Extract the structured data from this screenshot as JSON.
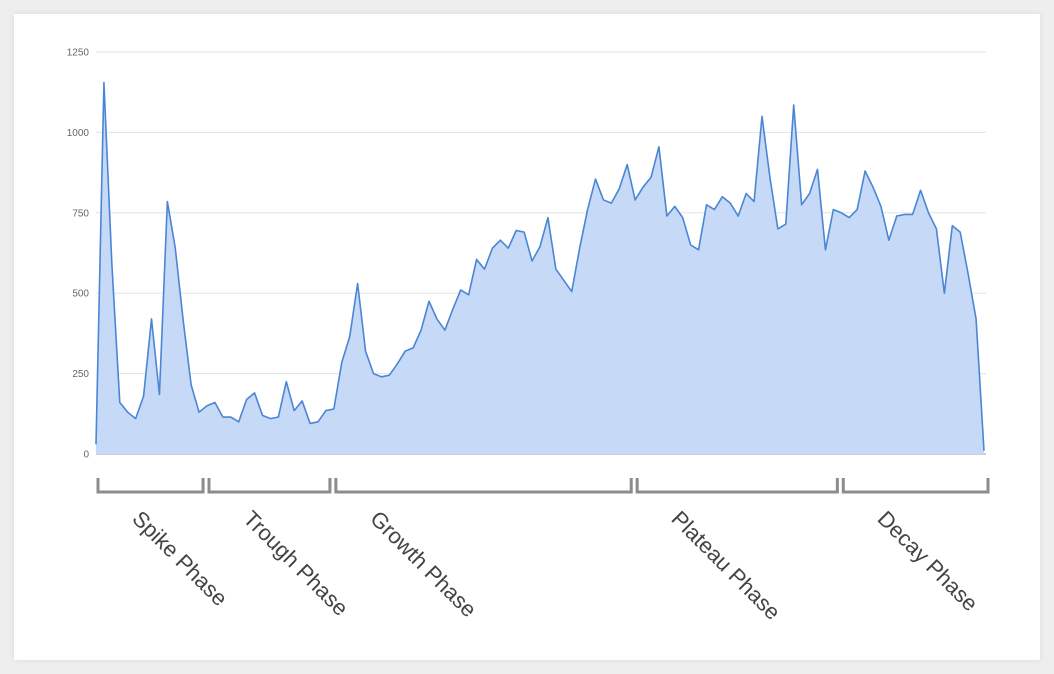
{
  "chart_data": {
    "type": "area",
    "title": "",
    "xlabel": "",
    "ylabel": "",
    "ylim": [
      0,
      1250
    ],
    "yticks": [
      0,
      250,
      500,
      750,
      1000,
      1250
    ],
    "grid": true,
    "colors": {
      "line": "#4a86d4",
      "fill": "#c6d9f7",
      "grid": "#e3e3e3",
      "bracket": "#8c8c8c"
    },
    "series": [
      {
        "values": [
          30,
          1155,
          590,
          160,
          130,
          110,
          180,
          420,
          185,
          785,
          640,
          415,
          215,
          130,
          150,
          160,
          115,
          115,
          100,
          170,
          190,
          120,
          110,
          115,
          225,
          135,
          165,
          95,
          100,
          135,
          140,
          285,
          365,
          530,
          320,
          250,
          240,
          245,
          280,
          320,
          330,
          385,
          475,
          420,
          385,
          450,
          510,
          495,
          605,
          575,
          640,
          665,
          640,
          695,
          690,
          600,
          645,
          735,
          575,
          540,
          505,
          640,
          760,
          855,
          790,
          780,
          825,
          900,
          790,
          830,
          860,
          955,
          740,
          770,
          735,
          650,
          635,
          775,
          760,
          800,
          780,
          740,
          810,
          785,
          1050,
          860,
          700,
          715,
          1085,
          775,
          810,
          885,
          635,
          760,
          750,
          735,
          760,
          880,
          830,
          770,
          665,
          740,
          745,
          745,
          820,
          750,
          700,
          500,
          710,
          690,
          560,
          420,
          10
        ]
      }
    ],
    "phases": [
      {
        "label": "Spike Phase",
        "start": 0,
        "end": 13
      },
      {
        "label": "Trough Phase",
        "start": 14,
        "end": 29
      },
      {
        "label": "Growth Phase",
        "start": 30,
        "end": 67
      },
      {
        "label": "Plateau Phase",
        "start": 68,
        "end": 93
      },
      {
        "label": "Decay Phase",
        "start": 94,
        "end": 112
      }
    ]
  }
}
